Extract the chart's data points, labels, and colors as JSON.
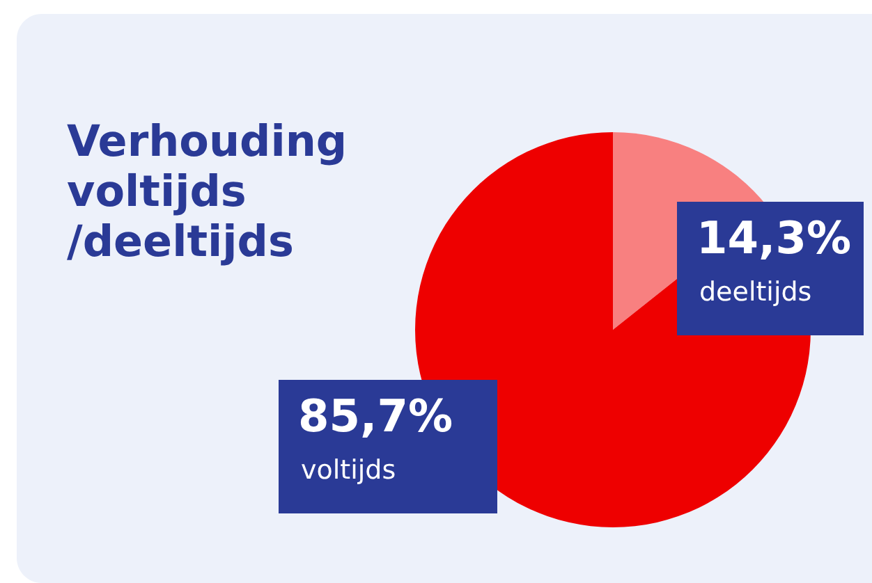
{
  "chart_data": {
    "type": "pie",
    "title": "Verhouding\nvoltijds\n/deeltijds",
    "categories": [
      "deeltijds",
      "voltijds"
    ],
    "values": [
      14.3,
      85.7
    ],
    "colors": [
      "#f88080",
      "#ee0000"
    ],
    "value_labels": [
      "14,3%",
      "85,7%"
    ]
  }
}
